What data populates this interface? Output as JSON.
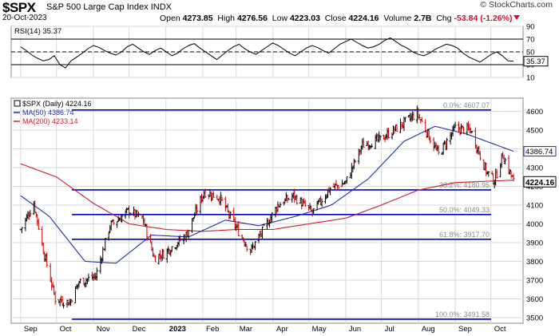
{
  "header": {
    "symbol": "$SPX",
    "name": "S&P 500 Large Cap Index",
    "exchange": "INDX",
    "date": "20-Oct-2023",
    "open_label": "Open",
    "open": "4273.85",
    "high_label": "High",
    "high": "4276.56",
    "low_label": "Low",
    "low": "4223.03",
    "close_label": "Close",
    "close": "4224.16",
    "volume_label": "Volume",
    "volume": "2.7B",
    "chg_label": "Chg",
    "chg": "-53.84 (-1.26%)",
    "brand": "© StockCharts.com"
  },
  "colors": {
    "up": "#000000",
    "down": "#cc0000",
    "fib": "#0000cc",
    "ma50": "#1f2fa8",
    "ma200": "#cc1c2c",
    "rsi": "#000000",
    "grid": "#d8d8d8"
  },
  "chart_data": [
    {
      "type": "line",
      "title": "RSI(14) 35.37",
      "series": [
        {
          "name": "RSI(14)",
          "last": 35.37,
          "values": [
            58,
            52,
            45,
            40,
            36,
            38,
            44,
            30,
            25,
            36,
            42,
            48,
            55,
            60,
            57,
            52,
            48,
            45,
            50,
            58,
            62,
            56,
            50,
            46,
            52,
            56,
            50,
            44,
            48,
            55,
            60,
            63,
            56,
            50,
            44,
            38,
            45,
            52,
            58,
            62,
            55,
            50,
            46,
            52,
            58,
            64,
            60,
            54,
            48,
            44,
            50,
            56,
            60,
            57,
            52,
            48,
            55,
            62,
            66,
            70,
            65,
            60,
            56,
            58,
            62,
            68,
            72,
            66,
            60,
            56,
            50,
            46,
            44,
            48,
            54,
            58,
            62,
            60,
            56,
            48,
            42,
            38,
            34,
            40,
            46,
            50,
            44,
            36,
            35.37
          ]
        }
      ],
      "ylim": [
        10,
        90
      ],
      "yticks": [
        10,
        30,
        50,
        70,
        90
      ],
      "reference_lines": [
        30,
        50,
        70
      ]
    },
    {
      "type": "line",
      "title": "$SPX (Daily) 4224.16",
      "legend": [
        {
          "name": "$SPX (Daily)",
          "value": "4224.16"
        },
        {
          "name": "MA(50)",
          "value": "4386.74"
        },
        {
          "name": "MA(200)",
          "value": "4233.14"
        }
      ],
      "ylim": [
        3470,
        4670
      ],
      "yticks": [
        3500,
        3600,
        3700,
        3800,
        3900,
        4000,
        4100,
        4200,
        4300,
        4400,
        4500,
        4600
      ],
      "x_labels": [
        "Sep",
        "Oct",
        "Nov",
        "Dec",
        "2023",
        "Feb",
        "Mar",
        "Apr",
        "May",
        "Jun",
        "Jul",
        "Aug",
        "Sep",
        "Oct"
      ],
      "close_anchors": [
        [
          "2022-09-01",
          3970
        ],
        [
          "2022-09-12",
          4110
        ],
        [
          "2022-09-20",
          3860
        ],
        [
          "2022-09-30",
          3600
        ],
        [
          "2022-10-12",
          3580
        ],
        [
          "2022-10-20",
          3690
        ],
        [
          "2022-11-03",
          3720
        ],
        [
          "2022-11-15",
          3990
        ],
        [
          "2022-12-01",
          4070
        ],
        [
          "2022-12-13",
          4020
        ],
        [
          "2022-12-22",
          3820
        ],
        [
          "2022-12-30",
          3840
        ],
        [
          "2023-01-18",
          3940
        ],
        [
          "2023-02-02",
          4170
        ],
        [
          "2023-02-15",
          4140
        ],
        [
          "2023-03-01",
          3980
        ],
        [
          "2023-03-13",
          3855
        ],
        [
          "2023-03-24",
          3970
        ],
        [
          "2023-04-05",
          4100
        ],
        [
          "2023-04-18",
          4150
        ],
        [
          "2023-05-04",
          4060
        ],
        [
          "2023-05-19",
          4190
        ],
        [
          "2023-06-01",
          4220
        ],
        [
          "2023-06-15",
          4420
        ],
        [
          "2023-06-30",
          4450
        ],
        [
          "2023-07-14",
          4510
        ],
        [
          "2023-07-31",
          4590
        ],
        [
          "2023-08-18",
          4370
        ],
        [
          "2023-09-01",
          4510
        ],
        [
          "2023-09-14",
          4500
        ],
        [
          "2023-09-27",
          4280
        ],
        [
          "2023-10-04",
          4230
        ],
        [
          "2023-10-11",
          4370
        ],
        [
          "2023-10-20",
          4224.16
        ]
      ],
      "ma50_anchors": [
        [
          "2022-09-01",
          4150
        ],
        [
          "2022-09-25",
          4040
        ],
        [
          "2022-10-25",
          3800
        ],
        [
          "2022-11-20",
          3790
        ],
        [
          "2022-12-20",
          3940
        ],
        [
          "2023-01-20",
          3930
        ],
        [
          "2023-02-20",
          4020
        ],
        [
          "2023-03-20",
          3990
        ],
        [
          "2023-04-20",
          4040
        ],
        [
          "2023-05-20",
          4100
        ],
        [
          "2023-06-20",
          4240
        ],
        [
          "2023-07-20",
          4440
        ],
        [
          "2023-08-15",
          4520
        ],
        [
          "2023-09-10",
          4480
        ],
        [
          "2023-10-20",
          4386.74
        ]
      ],
      "ma200_anchors": [
        [
          "2022-09-01",
          4320
        ],
        [
          "2022-10-01",
          4250
        ],
        [
          "2022-11-01",
          4110
        ],
        [
          "2022-12-01",
          4000
        ],
        [
          "2023-01-01",
          3970
        ],
        [
          "2023-02-01",
          3960
        ],
        [
          "2023-03-01",
          3970
        ],
        [
          "2023-04-01",
          3970
        ],
        [
          "2023-05-01",
          4000
        ],
        [
          "2023-06-01",
          4030
        ],
        [
          "2023-07-01",
          4100
        ],
        [
          "2023-08-01",
          4180
        ],
        [
          "2023-09-01",
          4220
        ],
        [
          "2023-10-20",
          4233.14
        ]
      ],
      "fib_levels": [
        {
          "label": "0.0%: 4607.07",
          "value": 4607.07
        },
        {
          "label": "38.2%: 4180.95",
          "value": 4180.95
        },
        {
          "label": "50.0%: 4049.33",
          "value": 4049.33
        },
        {
          "label": "61.8%: 3917.70",
          "value": 3917.7
        },
        {
          "label": "100.0%: 3491.58",
          "value": 3491.58
        }
      ],
      "last_price_tags": [
        {
          "label": "4386.74",
          "value": 4386.74,
          "style": "outline"
        },
        {
          "label": "4224.16",
          "value": 4224.16,
          "style": "filled"
        }
      ]
    }
  ]
}
